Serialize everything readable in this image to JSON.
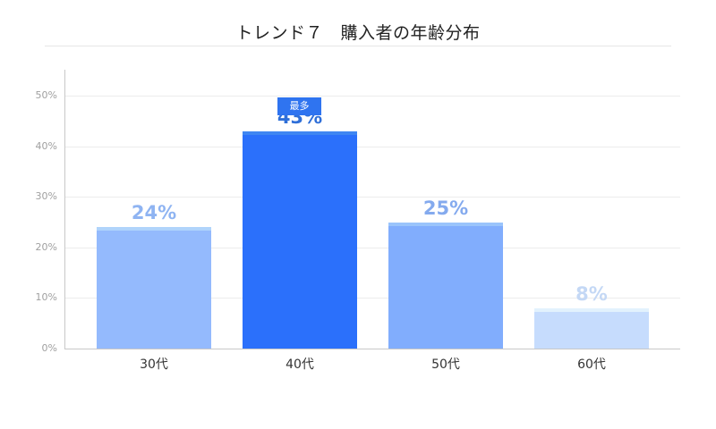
{
  "title": "トレンド７　購入者の年齢分布",
  "badge": {
    "label": "最多",
    "color": "#2f74f0"
  },
  "y_ticks": [
    "0%",
    "10%",
    "20%",
    "30%",
    "40%",
    "50%"
  ],
  "bars": [
    {
      "category": "30代",
      "value": 24,
      "label": "24%",
      "color": "#94bafd",
      "cap_color": "#b0d4fb",
      "label_color": "#8fb4f2"
    },
    {
      "category": "40代",
      "value": 43,
      "label": "43%",
      "color": "#2b70fb",
      "cap_color": "#3f86f2",
      "label_color": "#2f6fd8"
    },
    {
      "category": "50代",
      "value": 25,
      "label": "25%",
      "color": "#81adfd",
      "cap_color": "#9ac4fb",
      "label_color": "#84aaee"
    },
    {
      "category": "60代",
      "value": 8,
      "label": "8%",
      "color": "#c6dcfd",
      "cap_color": "#e2f2fd",
      "label_color": "#c4d8f5"
    }
  ],
  "chart_data": {
    "type": "bar",
    "title": "トレンド７　購入者の年齢分布",
    "categories": [
      "30代",
      "40代",
      "50代",
      "60代"
    ],
    "values": [
      24,
      43,
      25,
      8
    ],
    "value_labels": [
      "24%",
      "43%",
      "25%",
      "8%"
    ],
    "xlabel": "",
    "ylabel": "",
    "ylim": [
      0,
      55
    ],
    "yticks": [
      0,
      10,
      20,
      30,
      40,
      50
    ],
    "ytick_labels": [
      "0%",
      "10%",
      "20%",
      "30%",
      "40%",
      "50%"
    ],
    "grid": true,
    "legend": null,
    "annotations": [
      {
        "category": "40代",
        "text": "最多"
      }
    ]
  }
}
